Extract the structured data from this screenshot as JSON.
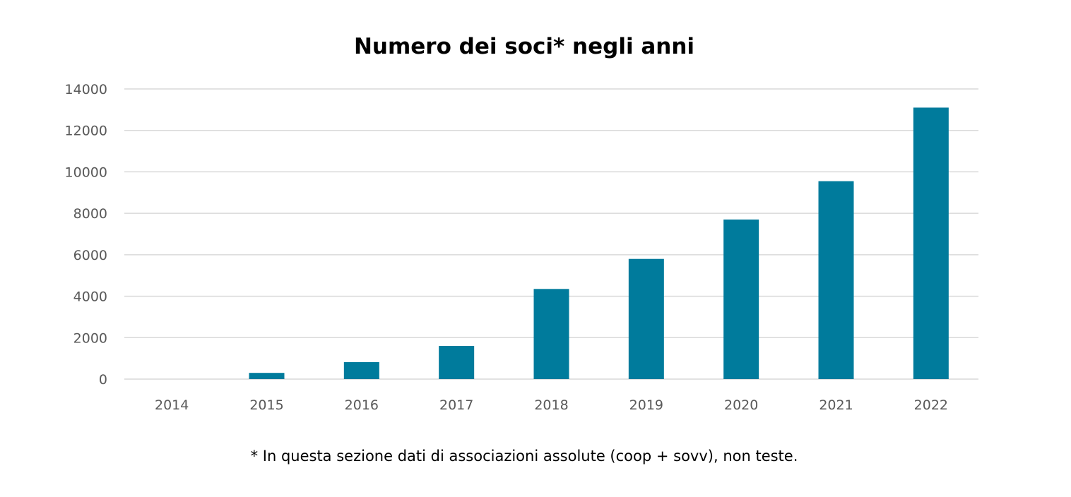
{
  "chart_data": {
    "type": "bar",
    "title": "Numero dei soci* negli anni",
    "xlabel": "",
    "ylabel": "",
    "categories": [
      "2014",
      "2015",
      "2016",
      "2017",
      "2018",
      "2019",
      "2020",
      "2021",
      "2022"
    ],
    "values": [
      0,
      300,
      820,
      1600,
      4350,
      5800,
      7700,
      9550,
      13100
    ],
    "ylim": [
      0,
      14000
    ],
    "yticks": [
      0,
      2000,
      4000,
      6000,
      8000,
      10000,
      12000,
      14000
    ],
    "grid": true,
    "legend": "none",
    "bar_color": "#007B9C",
    "footnote": "* In questa sezione dati di associazioni assolute (coop + sovv), non teste."
  }
}
